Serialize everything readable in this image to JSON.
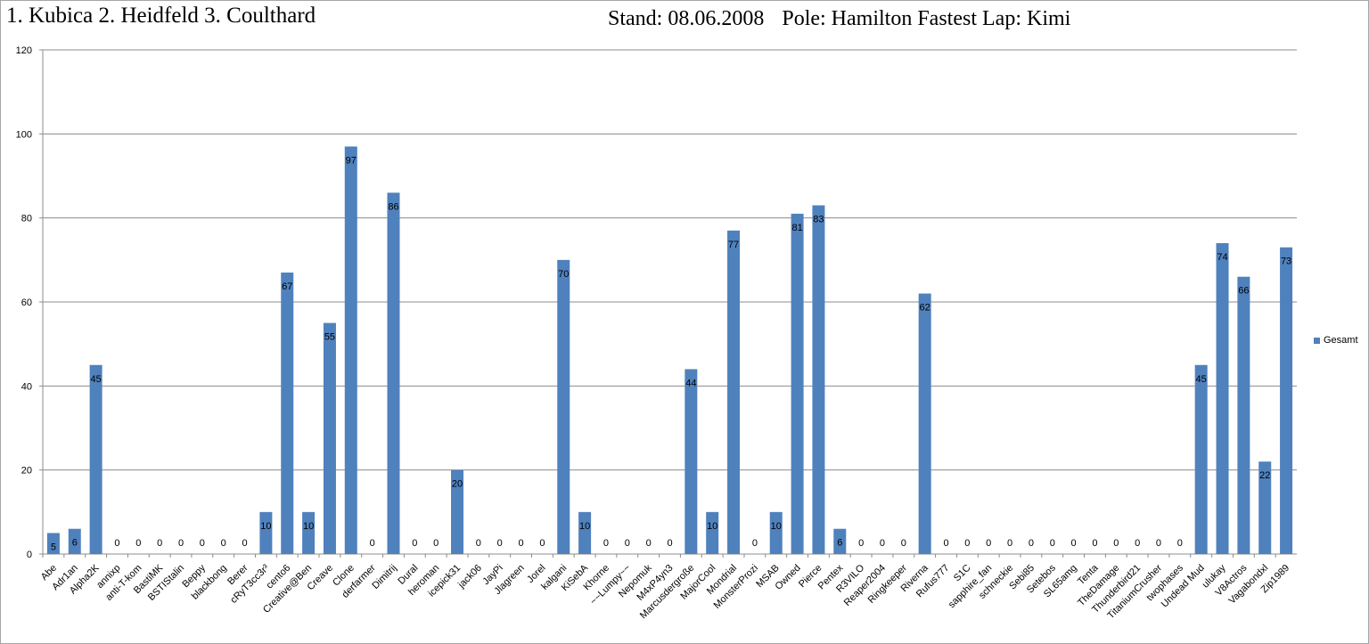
{
  "header": {
    "left_title": "1. Kubica 2. Heidfeld 3. Coulthard",
    "stand": "Stand: 08.06.2008",
    "pole_fastest": "Pole: Hamilton Fastest Lap: Kimi"
  },
  "chart_data": {
    "type": "bar",
    "ylim": [
      0,
      120
    ],
    "yticks": [
      0,
      20,
      40,
      60,
      80,
      100,
      120
    ],
    "grid": true,
    "legend_position": "right",
    "categories": [
      "Abe",
      "Adr1an",
      "Alpha2K",
      "annixp",
      "anti-T-kom",
      "BastiMK",
      "BSTIStalin",
      "Beppy",
      "blackbong",
      "Berer",
      "cRyT3cc3r³",
      "cento6",
      "Creative@Ben",
      "Creave",
      "Clone",
      "derfarmer",
      "Dimitrij",
      "Dural",
      "heroman",
      "icepick31",
      "jack06",
      "JayPi",
      "Jlagreen",
      "Jorel",
      "kalgani",
      "KiSebA",
      "Khorne",
      "~~Lumpy~~",
      "Nepomuk",
      "M4xP4yn3",
      "Marcusdergroße",
      "MajorCool",
      "Mondrial",
      "MonsterProzi",
      "MSAB",
      "Owned",
      "Pierce",
      "Pentex",
      "R3VILO",
      "Reaper2004",
      "Ringkeeper",
      "Riverna",
      "Rufus777",
      "S1C",
      "sapphire_fan",
      "schneckie",
      "Sebi85",
      "Setebos",
      "SL65amg",
      "Tenta",
      "TheDamage",
      "Thunderbird21",
      "TitaniumCrusher",
      "twophases",
      "Undead Mud",
      "ulukay",
      "V8Actros",
      "Vagabondxl",
      "Zip1989"
    ],
    "series": [
      {
        "name": "Gesamt",
        "color": "#4f81bd",
        "values": [
          5,
          6,
          45,
          0,
          0,
          0,
          0,
          0,
          0,
          0,
          10,
          67,
          10,
          55,
          97,
          0,
          86,
          0,
          0,
          20,
          0,
          0,
          0,
          0,
          70,
          10,
          0,
          0,
          0,
          0,
          44,
          10,
          77,
          0,
          10,
          81,
          83,
          6,
          0,
          0,
          0,
          62,
          0,
          0,
          0,
          0,
          0,
          0,
          0,
          0,
          0,
          0,
          0,
          0,
          45,
          74,
          66,
          22,
          73
        ]
      }
    ]
  }
}
